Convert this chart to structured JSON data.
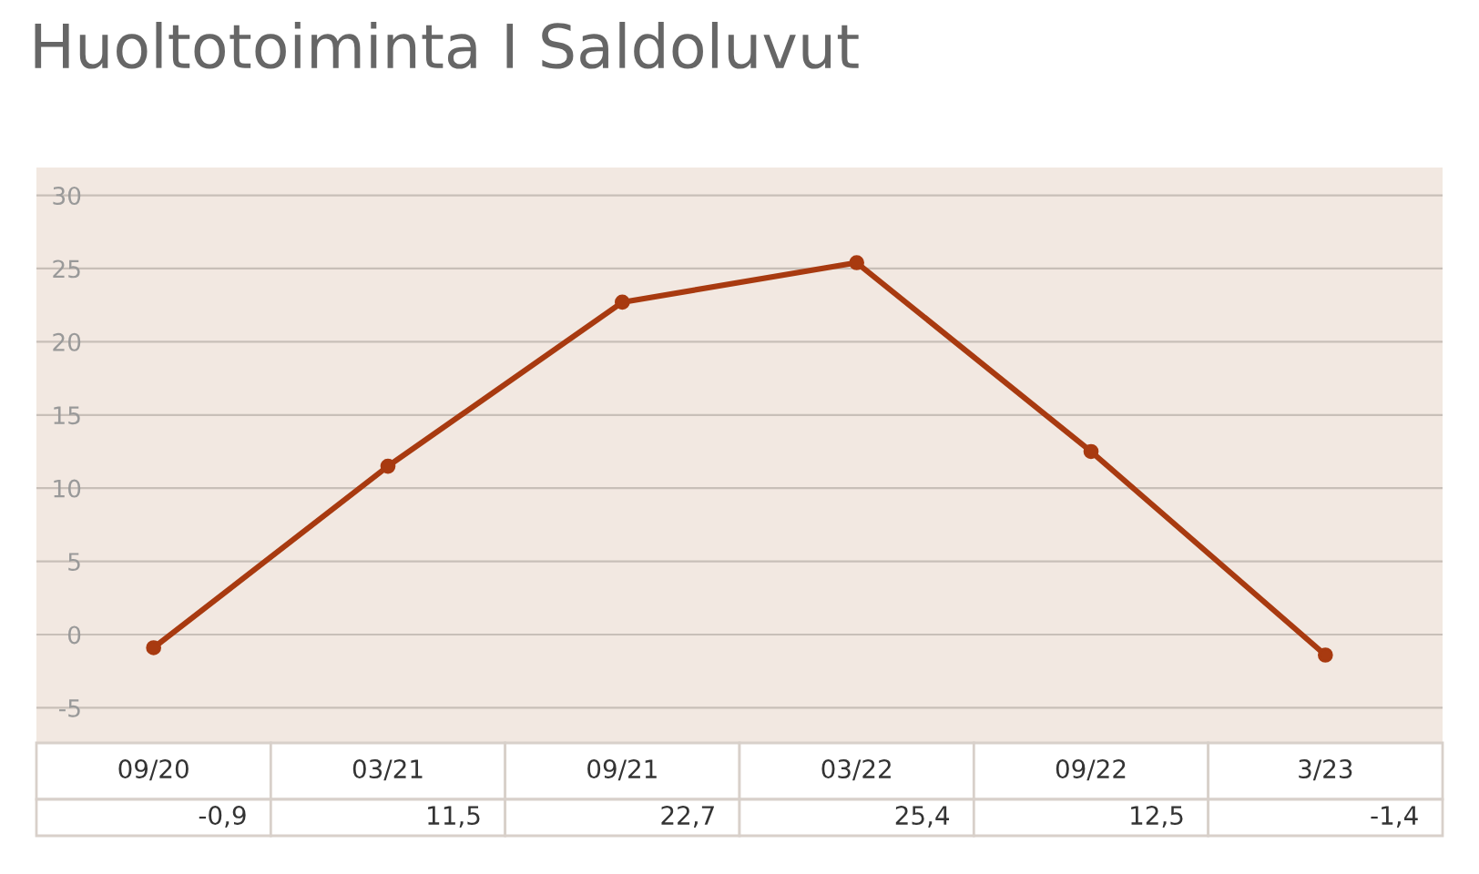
{
  "chart_data": {
    "type": "line",
    "title": "Huoltotoiminta I Saldoluvut",
    "categories": [
      "09/20",
      "03/21",
      "09/21",
      "03/22",
      "09/22",
      "3/23"
    ],
    "series": [
      {
        "color": "#a83a10",
        "values": [
          -0.9,
          11.5,
          22.7,
          25.4,
          12.5,
          -1.4
        ],
        "value_labels": [
          "-0,9",
          "11,5",
          "22,7",
          "25,4",
          "12,5",
          "-1,4"
        ]
      }
    ],
    "ylim": [
      -7.4,
      31.9
    ],
    "yticks": [
      -5,
      0,
      5,
      10,
      15,
      20,
      25,
      30
    ],
    "grid": "y",
    "marker": "circle",
    "line_style": "solid",
    "legend": false
  }
}
